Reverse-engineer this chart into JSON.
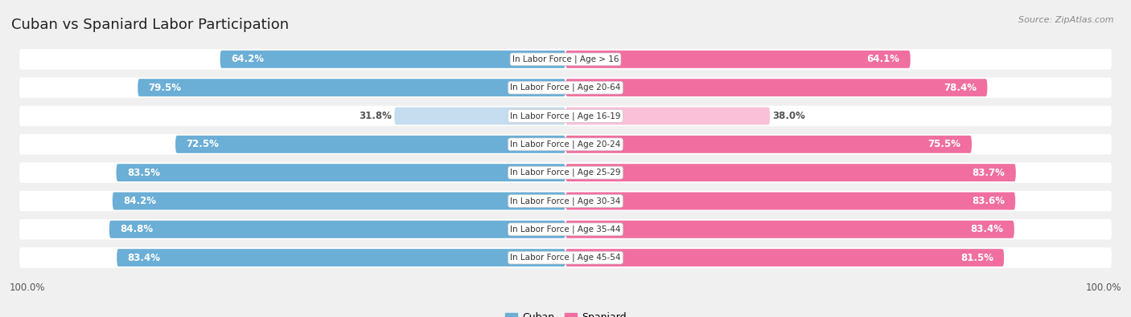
{
  "title": "Cuban vs Spaniard Labor Participation",
  "source": "Source: ZipAtlas.com",
  "categories": [
    "In Labor Force | Age > 16",
    "In Labor Force | Age 20-64",
    "In Labor Force | Age 16-19",
    "In Labor Force | Age 20-24",
    "In Labor Force | Age 25-29",
    "In Labor Force | Age 30-34",
    "In Labor Force | Age 35-44",
    "In Labor Force | Age 45-54"
  ],
  "cuban_values": [
    64.2,
    79.5,
    31.8,
    72.5,
    83.5,
    84.2,
    84.8,
    83.4
  ],
  "spaniard_values": [
    64.1,
    78.4,
    38.0,
    75.5,
    83.7,
    83.6,
    83.4,
    81.5
  ],
  "cuban_color": "#6baed6",
  "cuban_color_light": "#c6dcef",
  "spaniard_color": "#f06fa0",
  "spaniard_color_light": "#f9c0d8",
  "bar_height": 0.62,
  "xlim": 100,
  "legend_cuban": "Cuban",
  "legend_spaniard": "Spaniard",
  "background_color": "#f0f0f0",
  "row_bg_color": "#e8e8e8",
  "threshold": 50
}
